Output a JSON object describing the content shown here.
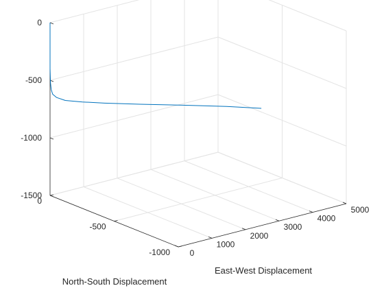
{
  "chart_data": {
    "type": "line",
    "title": "",
    "xlabel": "East-West Displacement",
    "ylabel": "North-South Displacement",
    "zlabel": "",
    "xlim": [
      0,
      5000
    ],
    "ylim": [
      -1000,
      0
    ],
    "zlim": [
      -1500,
      0
    ],
    "x_ticks": [
      "0",
      "1000",
      "2000",
      "3000",
      "4000",
      "5000"
    ],
    "y_ticks": [
      "0",
      "-500",
      "-1000"
    ],
    "z_ticks": [
      "0",
      "-500",
      "-1000",
      "-1500"
    ],
    "grid": true,
    "line_color": "#0072BD",
    "series": [
      {
        "x": [
          0,
          0,
          0,
          5,
          15,
          40,
          120,
          300,
          700,
          1200,
          2000,
          3000,
          4000,
          4800
        ],
        "y": [
          0,
          0,
          0,
          -2,
          -5,
          -10,
          -20,
          -40,
          -70,
          -110,
          -175,
          -250,
          -330,
          -390
        ],
        "z": [
          0,
          -200,
          -400,
          -520,
          -580,
          -620,
          -650,
          -680,
          -710,
          -740,
          -780,
          -830,
          -880,
          -930
        ]
      }
    ]
  }
}
